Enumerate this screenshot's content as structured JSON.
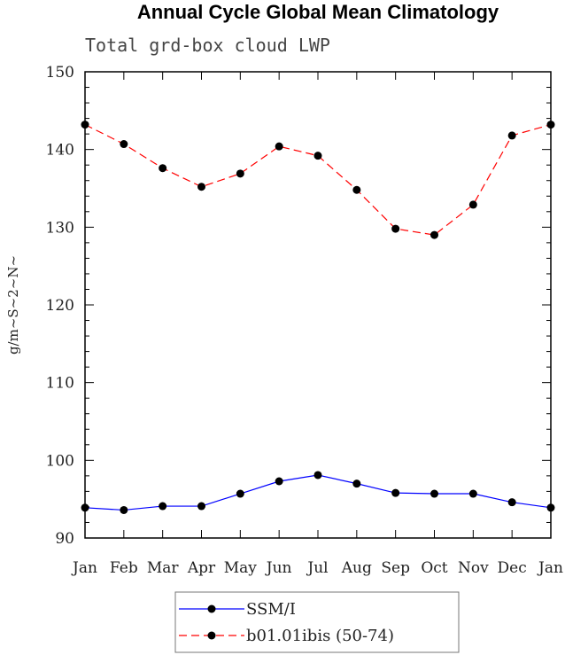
{
  "chart_data": {
    "type": "line",
    "title": "Annual Cycle Global Mean Climatology",
    "subtitle": "Total grd-box cloud LWP",
    "ylabel": "g/m~S~2~N~",
    "xlabel": "",
    "categories": [
      "Jan",
      "Feb",
      "Mar",
      "Apr",
      "May",
      "Jun",
      "Jul",
      "Aug",
      "Sep",
      "Oct",
      "Nov",
      "Dec",
      "Jan"
    ],
    "ylim": [
      90,
      150
    ],
    "yticks": [
      90,
      100,
      110,
      120,
      130,
      140,
      150
    ],
    "grid": false,
    "legend_position": "bottom-center",
    "series": [
      {
        "name": "SSM/I",
        "color": "#0000ff",
        "dash": "solid",
        "values": [
          93.9,
          93.6,
          94.1,
          94.1,
          95.7,
          97.3,
          98.1,
          97.0,
          95.8,
          95.7,
          95.7,
          94.6,
          93.9
        ]
      },
      {
        "name": "b01.01ibis (50-74)",
        "color": "#ff0000",
        "dash": "dashed",
        "values": [
          143.2,
          140.7,
          137.6,
          135.2,
          136.9,
          140.4,
          139.2,
          134.8,
          129.8,
          129.0,
          132.9,
          141.8,
          143.2
        ]
      }
    ]
  }
}
